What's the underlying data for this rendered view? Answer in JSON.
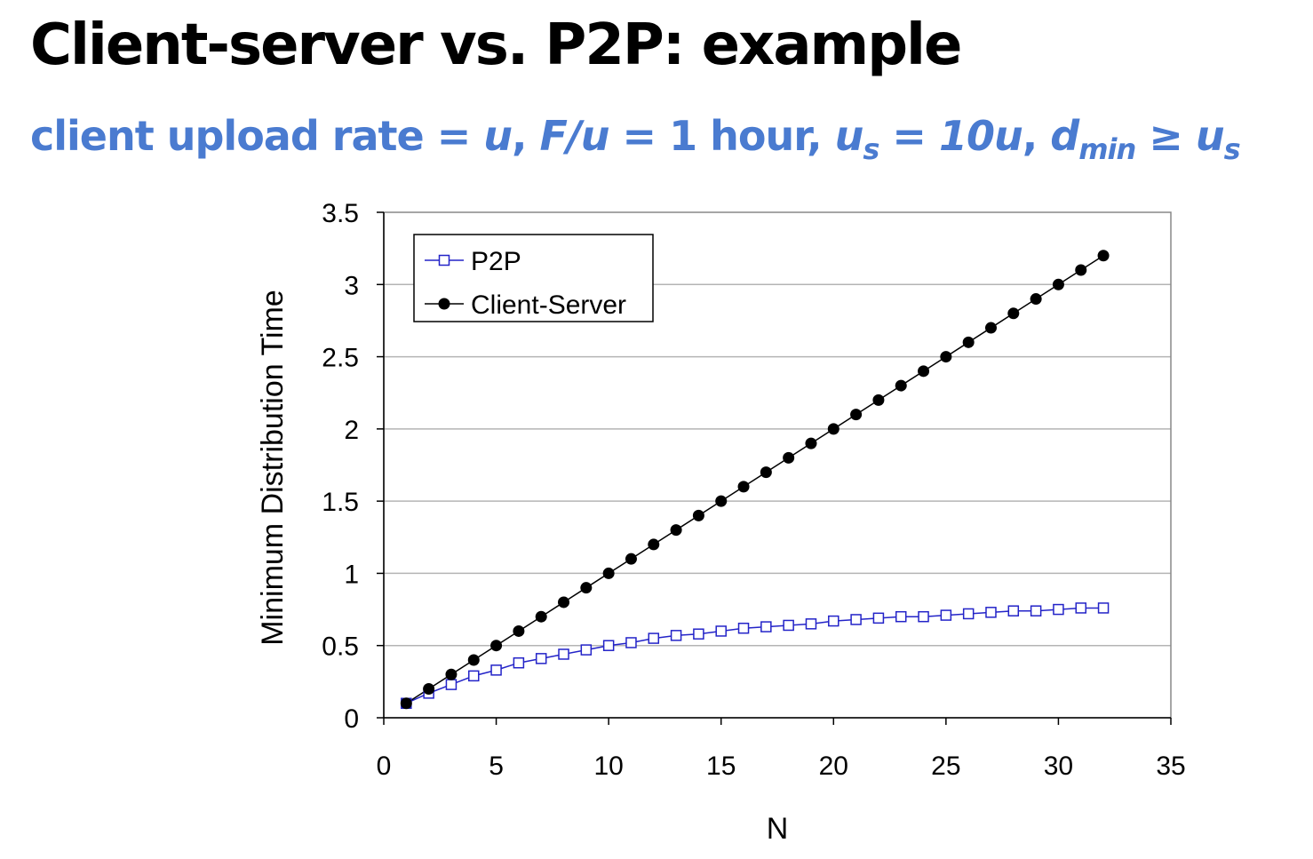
{
  "slide": {
    "title": "Client-server vs. P2P: example",
    "subtitle": {
      "t1": "client upload rate = ",
      "t2": "u",
      "t3": ",  ",
      "t4": "F/u",
      "t5": " = 1 hour,  ",
      "t6": "u",
      "t6s": "s",
      "t7": " = 10",
      "t8": "u",
      "t9": ",  ",
      "t10": "d",
      "t10s": "min",
      "t11": " ≥ ",
      "t12": "u",
      "t12s": "s"
    }
  },
  "colors": {
    "p2p": "#2323c8",
    "client_server": "#000000",
    "grid": "#b4b4b4",
    "subtitle": "#4a7bd0"
  },
  "chart_data": {
    "type": "line",
    "xlabel": "N",
    "ylabel": "Minimum Distribution Time",
    "xlim": [
      0,
      35
    ],
    "ylim": [
      0,
      3.5
    ],
    "xticks": [
      0,
      5,
      10,
      15,
      20,
      25,
      30,
      35
    ],
    "yticks": [
      0,
      0.5,
      1,
      1.5,
      2,
      2.5,
      3,
      3.5
    ],
    "ytick_labels": [
      "0",
      "0.5",
      "1",
      "1.5",
      "2",
      "2.5",
      "3",
      "3.5"
    ],
    "grid": "horizontal",
    "legend": "top-left",
    "x": [
      1,
      2,
      3,
      4,
      5,
      6,
      7,
      8,
      9,
      10,
      11,
      12,
      13,
      14,
      15,
      16,
      17,
      18,
      19,
      20,
      21,
      22,
      23,
      24,
      25,
      26,
      27,
      28,
      29,
      30,
      31,
      32
    ],
    "series": [
      {
        "name": "P2P",
        "marker": "open-square",
        "values": [
          0.1,
          0.17,
          0.23,
          0.29,
          0.33,
          0.38,
          0.41,
          0.44,
          0.47,
          0.5,
          0.52,
          0.55,
          0.57,
          0.58,
          0.6,
          0.62,
          0.63,
          0.64,
          0.65,
          0.67,
          0.68,
          0.69,
          0.7,
          0.7,
          0.71,
          0.72,
          0.73,
          0.74,
          0.74,
          0.75,
          0.76,
          0.76
        ]
      },
      {
        "name": "Client-Server",
        "marker": "filled-circle",
        "values": [
          0.1,
          0.2,
          0.3,
          0.4,
          0.5,
          0.6,
          0.7,
          0.8,
          0.9,
          1.0,
          1.1,
          1.2,
          1.3,
          1.4,
          1.5,
          1.6,
          1.7,
          1.8,
          1.9,
          2.0,
          2.1,
          2.2,
          2.3,
          2.4,
          2.5,
          2.6,
          2.7,
          2.8,
          2.9,
          3.0,
          3.1,
          3.2
        ]
      }
    ]
  }
}
